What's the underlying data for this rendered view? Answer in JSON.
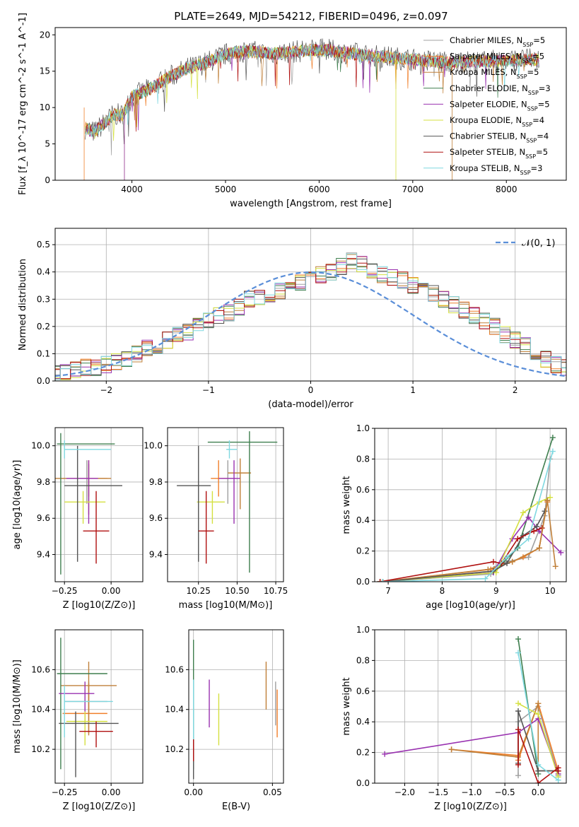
{
  "page_title": "PLATE=2649, MJD=54212, FIBERID=0496, z=0.097",
  "series_styles": [
    {
      "name": "Chabrier MILES, N<sub>SSP</sub>=5",
      "color": "#a0a0a0"
    },
    {
      "name": "Salpeter MILES, N<sub>SSP</sub>=5",
      "color": "#f07f2a"
    },
    {
      "name": "Kroupa MILES, N<sub>SSP</sub>=5",
      "color": "#c0803a"
    },
    {
      "name": "Chabrier ELODIE, N<sub>SSP</sub>=3",
      "color": "#3f7f4f"
    },
    {
      "name": "Salpeter ELODIE, N<sub>SSP</sub>=5",
      "color": "#9932b0"
    },
    {
      "name": "Kroupa ELODIE, N<sub>SSP</sub>=4",
      "color": "#d4e040"
    },
    {
      "name": "Chabrier STELIB, N<sub>SSP</sub>=4",
      "color": "#555555"
    },
    {
      "name": "Salpeter STELIB, N<sub>SSP</sub>=5",
      "color": "#b01010"
    },
    {
      "name": "Kroupa STELIB, N<sub>SSP</sub>=3",
      "color": "#7fd8e0"
    }
  ],
  "chart_data": [
    {
      "id": "spectrum",
      "type": "line",
      "title": "PLATE=2649, MJD=54212, FIBERID=0496, z=0.097",
      "xlabel": "wavelength [Angstrom, rest frame]",
      "ylabel": "Flux [f_λ 10^-17 erg cm^-2 s^-1 A^-1]",
      "xlim": [
        3180,
        8640
      ],
      "ylim": [
        0,
        21
      ],
      "xticks": [
        4000,
        5000,
        6000,
        7000,
        8000
      ],
      "yticks": [
        0,
        5,
        10,
        15,
        20
      ],
      "legend": "top-right",
      "series": [
        {
          "name": "Chabrier MILES, N<sub>SSP</sub>=5"
        },
        {
          "name": "Salpeter MILES, N<sub>SSP</sub>=5"
        },
        {
          "name": "Kroupa MILES, N<sub>SSP</sub>=5"
        },
        {
          "name": "Chabrier ELODIE, N<sub>SSP</sub>=3"
        },
        {
          "name": "Salpeter ELODIE, N<sub>SSP</sub>=5"
        },
        {
          "name": "Kroupa ELODIE, N<sub>SSP</sub>=4"
        },
        {
          "name": "Chabrier STELIB, N<sub>SSP</sub>=4"
        },
        {
          "name": "Salpeter STELIB, N<sub>SSP</sub>=5"
        },
        {
          "name": "Kroupa STELIB, N<sub>SSP</sub>=3"
        }
      ],
      "data_envelope": {
        "x": [
          3500,
          3600,
          3700,
          3800,
          3900,
          4000,
          4200,
          4400,
          4600,
          4800,
          5000,
          5200,
          5500,
          6000,
          6500,
          7000,
          7400,
          8000,
          8350
        ],
        "y": [
          7.2,
          6.6,
          7.8,
          9.0,
          9.0,
          11.5,
          12.6,
          14.2,
          15.4,
          16.2,
          17.3,
          17.8,
          17.4,
          18.0,
          17.2,
          16.6,
          16.2,
          16.5,
          16.6
        ]
      },
      "grid": false
    },
    {
      "id": "residuals",
      "type": "histogram",
      "xlabel": "(data-model)/error",
      "ylabel": "Normed distribution",
      "xlim": [
        -2.5,
        2.5
      ],
      "ylim": [
        0,
        0.56
      ],
      "xticks": [
        -2,
        -1,
        0,
        1,
        2
      ],
      "yticks": [
        0.0,
        0.1,
        0.2,
        0.3,
        0.4,
        0.5
      ],
      "grid": true,
      "legend": "top-right",
      "reference_curve": {
        "name": "𝒩(0, 1)",
        "color": "#5a8ed8",
        "mean": 0,
        "sigma": 1
      },
      "bin_width": 0.1,
      "values": [
        0.03,
        0.03,
        0.04,
        0.05,
        0.05,
        0.06,
        0.07,
        0.08,
        0.1,
        0.12,
        0.13,
        0.15,
        0.17,
        0.18,
        0.2,
        0.22,
        0.24,
        0.25,
        0.27,
        0.3,
        0.31,
        0.32,
        0.33,
        0.35,
        0.36,
        0.37,
        0.39,
        0.4,
        0.42,
        0.44,
        0.43,
        0.4,
        0.39,
        0.38,
        0.37,
        0.35,
        0.34,
        0.32,
        0.3,
        0.28,
        0.26,
        0.24,
        0.22,
        0.2,
        0.17,
        0.15,
        0.13,
        0.1,
        0.08,
        0.06,
        0.05
      ]
    },
    {
      "id": "age-vs-Z",
      "type": "errorbar",
      "xlabel": "Z [log10(Z/Z⊙)]",
      "ylabel": "age [log10(age/yr)]",
      "xlim": [
        -0.3,
        0.17
      ],
      "ylim": [
        9.25,
        10.1
      ],
      "xticks": [
        -0.25,
        0.0
      ],
      "yticks": [
        9.4,
        9.6,
        9.8,
        10.0
      ],
      "grid": true,
      "points": [
        {
          "series": 0,
          "x": -0.13,
          "y": 9.82,
          "xerr": [
            0.14,
            0.1
          ],
          "yerr": [
            0.14,
            0.1
          ]
        },
        {
          "series": 1,
          "x": -0.12,
          "y": 9.82,
          "xerr": [
            0.12,
            0.1
          ],
          "yerr": [
            0.1,
            0.1
          ]
        },
        {
          "series": 2,
          "x": -0.12,
          "y": 9.82,
          "xerr": [
            0.18,
            0.12
          ],
          "yerr": [
            0.2,
            0.08
          ]
        },
        {
          "series": 3,
          "x": -0.27,
          "y": 10.01,
          "xerr": [
            0.02,
            0.29
          ],
          "yerr": [
            0.72,
            0.06
          ]
        },
        {
          "series": 4,
          "x": -0.12,
          "y": 9.82,
          "xerr": [
            0.12,
            0.05
          ],
          "yerr": [
            0.25,
            0.1
          ]
        },
        {
          "series": 5,
          "x": -0.15,
          "y": 9.69,
          "xerr": [
            0.1,
            0.12
          ],
          "yerr": [
            0.12,
            0.06
          ]
        },
        {
          "series": 6,
          "x": -0.18,
          "y": 9.78,
          "xerr": [
            0.07,
            0.24
          ],
          "yerr": [
            0.42,
            0.22
          ]
        },
        {
          "series": 7,
          "x": -0.08,
          "y": 9.53,
          "xerr": [
            0.07,
            0.07
          ],
          "yerr": [
            0.18,
            0.22
          ]
        },
        {
          "series": 8,
          "x": -0.25,
          "y": 9.98,
          "xerr": [
            0.0,
            0.25
          ],
          "yerr": [
            0.05,
            0.05
          ]
        }
      ]
    },
    {
      "id": "age-vs-mass",
      "type": "errorbar",
      "xlabel": "mass [log10(M/M⊙)]",
      "ylabel": "",
      "xlim": [
        10.05,
        10.8
      ],
      "ylim": [
        9.25,
        10.1
      ],
      "xticks": [
        10.25,
        10.5,
        10.75
      ],
      "yticks": [
        9.4,
        9.6,
        9.8,
        10.0
      ],
      "grid": true,
      "points": [
        {
          "series": 0,
          "x": 10.44,
          "y": 9.82,
          "xerr": [
            0.04,
            0.05
          ],
          "yerr": [
            0.14,
            0.1
          ]
        },
        {
          "series": 1,
          "x": 10.38,
          "y": 9.82,
          "xerr": [
            0.05,
            0.06
          ],
          "yerr": [
            0.1,
            0.1
          ]
        },
        {
          "series": 2,
          "x": 10.52,
          "y": 9.85,
          "xerr": [
            0.08,
            0.07
          ],
          "yerr": [
            0.2,
            0.08
          ]
        },
        {
          "series": 3,
          "x": 10.58,
          "y": 10.02,
          "xerr": [
            0.27,
            0.18
          ],
          "yerr": [
            0.72,
            0.06
          ]
        },
        {
          "series": 4,
          "x": 10.48,
          "y": 9.82,
          "xerr": [
            0.1,
            0.04
          ],
          "yerr": [
            0.25,
            0.1
          ]
        },
        {
          "series": 5,
          "x": 10.34,
          "y": 9.69,
          "xerr": [
            0.1,
            0.08
          ],
          "yerr": [
            0.12,
            0.06
          ]
        },
        {
          "series": 6,
          "x": 10.25,
          "y": 9.78,
          "xerr": [
            0.14,
            0.08
          ],
          "yerr": [
            0.42,
            0.22
          ]
        },
        {
          "series": 7,
          "x": 10.3,
          "y": 9.53,
          "xerr": [
            0.05,
            0.05
          ],
          "yerr": [
            0.18,
            0.22
          ]
        },
        {
          "series": 8,
          "x": 10.45,
          "y": 9.98,
          "xerr": [
            0.02,
            0.05
          ],
          "yerr": [
            0.05,
            0.05
          ]
        }
      ]
    },
    {
      "id": "mass-weight-vs-age",
      "type": "line",
      "xlabel": "age [log10(age/yr)]",
      "ylabel": "mass weight",
      "xlim": [
        6.75,
        10.3
      ],
      "ylim": [
        0,
        1
      ],
      "xticks": [
        7,
        8,
        9,
        10
      ],
      "yticks": [
        0.0,
        0.2,
        0.4,
        0.6,
        0.8,
        1.0
      ],
      "grid": true,
      "series": [
        {
          "series": 0,
          "x": [
            6.85,
            8.9,
            9.0,
            9.2,
            9.6,
            9.9,
            10.0
          ],
          "y": [
            0.0,
            0.05,
            0.1,
            0.13,
            0.16,
            0.43,
            0.8
          ]
        },
        {
          "series": 1,
          "x": [
            6.85,
            8.9,
            9.3,
            9.5,
            9.8,
            9.95
          ],
          "y": [
            0.0,
            0.08,
            0.13,
            0.16,
            0.22,
            0.52
          ]
        },
        {
          "series": 2,
          "x": [
            6.9,
            8.85,
            9.3,
            9.8,
            9.95
          ],
          "y": [
            0.0,
            0.08,
            0.13,
            0.22,
            0.53
          ]
        },
        {
          "series": 3,
          "x": [
            6.9,
            8.95,
            9.4,
            10.05
          ],
          "y": [
            0.0,
            0.06,
            0.22,
            0.94
          ]
        },
        {
          "series": 4,
          "x": [
            6.85,
            8.95,
            9.3,
            9.6,
            9.8,
            10.2
          ],
          "y": [
            0.0,
            0.06,
            0.28,
            0.42,
            0.33,
            0.19
          ]
        },
        {
          "series": 5,
          "x": [
            6.85,
            9.0,
            9.5,
            9.8,
            10.0
          ],
          "y": [
            0.0,
            0.06,
            0.45,
            0.52,
            0.55
          ]
        },
        {
          "series": 6,
          "x": [
            6.9,
            8.95,
            9.2,
            9.5,
            9.75,
            9.9
          ],
          "y": [
            0.0,
            0.07,
            0.12,
            0.3,
            0.36,
            0.46
          ]
        },
        {
          "series": 7,
          "x": [
            6.85,
            8.95,
            9.1,
            9.4,
            9.7,
            9.85
          ],
          "y": [
            0.0,
            0.13,
            0.12,
            0.28,
            0.33,
            0.35
          ]
        },
        {
          "series": 8,
          "x": [
            6.9,
            8.8,
            9.2,
            9.6,
            10.05
          ],
          "y": [
            0.0,
            0.02,
            0.16,
            0.28,
            0.85
          ]
        },
        {
          "series": 2,
          "x": [
            9.8,
            9.95,
            10.1
          ],
          "y": [
            0.22,
            0.53,
            0.1
          ]
        }
      ]
    },
    {
      "id": "mass-vs-Z",
      "type": "errorbar",
      "xlabel": "Z [log10(Z/Z⊙)]",
      "ylabel": "mass [log10(M/M⊙)]",
      "xlim": [
        -0.3,
        0.17
      ],
      "ylim": [
        10.03,
        10.8
      ],
      "xticks": [
        -0.25,
        0.0
      ],
      "yticks": [
        10.2,
        10.4,
        10.6
      ],
      "grid": true,
      "points": [
        {
          "series": 0,
          "x": -0.12,
          "y": 10.44,
          "xerr": [
            0.13,
            0.1
          ],
          "yerr": [
            0.06,
            0.1
          ]
        },
        {
          "series": 1,
          "x": -0.12,
          "y": 10.38,
          "xerr": [
            0.14,
            0.1
          ],
          "yerr": [
            0.1,
            0.15
          ]
        },
        {
          "series": 2,
          "x": -0.12,
          "y": 10.52,
          "xerr": [
            0.15,
            0.15
          ],
          "yerr": [
            0.25,
            0.12
          ]
        },
        {
          "series": 3,
          "x": -0.27,
          "y": 10.58,
          "xerr": [
            0.02,
            0.25
          ],
          "yerr": [
            0.48,
            0.18
          ]
        },
        {
          "series": 4,
          "x": -0.14,
          "y": 10.48,
          "xerr": [
            0.14,
            0.05
          ],
          "yerr": [
            0.15,
            0.06
          ]
        },
        {
          "series": 5,
          "x": -0.14,
          "y": 10.34,
          "xerr": [
            0.1,
            0.12
          ],
          "yerr": [
            0.12,
            0.05
          ]
        },
        {
          "series": 6,
          "x": -0.19,
          "y": 10.33,
          "xerr": [
            0.09,
            0.23
          ],
          "yerr": [
            0.27,
            0.06
          ]
        },
        {
          "series": 7,
          "x": -0.08,
          "y": 10.29,
          "xerr": [
            0.09,
            0.09
          ],
          "yerr": [
            0.08,
            0.05
          ]
        },
        {
          "series": 8,
          "x": -0.25,
          "y": 10.44,
          "xerr": [
            0.0,
            0.26
          ],
          "yerr": [
            0.18,
            0.08
          ]
        }
      ]
    },
    {
      "id": "mass-vs-EBV",
      "type": "errorbar",
      "xlabel": "E(B-V)",
      "ylabel": "",
      "xlim": [
        -0.003,
        0.057
      ],
      "ylim": [
        10.03,
        10.8
      ],
      "xticks": [
        0.0,
        0.05
      ],
      "yticks": [
        10.2,
        10.4,
        10.6
      ],
      "grid": true,
      "points": [
        {
          "series": 0,
          "x": 0.052,
          "y": 10.44,
          "yerr": [
            0.12,
            0.1
          ]
        },
        {
          "series": 1,
          "x": 0.053,
          "y": 10.38,
          "yerr": [
            0.12,
            0.12
          ]
        },
        {
          "series": 2,
          "x": 0.046,
          "y": 10.52,
          "yerr": [
            0.12,
            0.12
          ]
        },
        {
          "series": 3,
          "x": 0.0,
          "y": 10.45,
          "yerr": [
            0.35,
            0.3
          ]
        },
        {
          "series": 4,
          "x": 0.01,
          "y": 10.43,
          "yerr": [
            0.12,
            0.12
          ]
        },
        {
          "series": 5,
          "x": 0.016,
          "y": 10.35,
          "yerr": [
            0.13,
            0.13
          ]
        },
        {
          "series": 6,
          "x": 0.0,
          "y": 10.15,
          "yerr": [
            0.1,
            0.1
          ]
        },
        {
          "series": 7,
          "x": 0.0,
          "y": 10.2,
          "yerr": [
            0.06,
            0.05
          ]
        },
        {
          "series": 8,
          "x": 0.0,
          "y": 10.4,
          "yerr": [
            0.15,
            0.15
          ]
        }
      ]
    },
    {
      "id": "mass-weight-vs-Z",
      "type": "line",
      "xlabel": "Z [log10(Z/Z⊙)]",
      "ylabel": "mass weight",
      "xlim": [
        -2.45,
        0.42
      ],
      "ylim": [
        0,
        1
      ],
      "xticks": [
        -2.0,
        -1.5,
        -1.0,
        -0.5,
        0.0
      ],
      "yticks": [
        0.0,
        0.2,
        0.4,
        0.6,
        0.8,
        1.0
      ],
      "grid": true,
      "series": [
        {
          "series": 0,
          "x": [
            -0.3,
            -0.3,
            0.0,
            0.3
          ],
          "y": [
            0.05,
            0.4,
            0.5,
            0.05
          ]
        },
        {
          "series": 1,
          "x": [
            -1.3,
            -0.3,
            -0.3,
            0.0,
            0.3
          ],
          "y": [
            0.22,
            0.18,
            0.15,
            0.52,
            0.08
          ]
        },
        {
          "series": 2,
          "x": [
            -1.3,
            -0.3,
            0.0,
            0.0,
            0.3
          ],
          "y": [
            0.22,
            0.17,
            0.52,
            0.08,
            0.08
          ]
        },
        {
          "series": 3,
          "x": [
            -0.3,
            0.0
          ],
          "y": [
            0.94,
            0.06
          ]
        },
        {
          "series": 4,
          "x": [
            -2.3,
            -0.3,
            0.0,
            0.3
          ],
          "y": [
            0.19,
            0.33,
            0.42,
            0.06
          ]
        },
        {
          "series": 5,
          "x": [
            -0.3,
            0.0,
            0.3
          ],
          "y": [
            0.52,
            0.45,
            0.04
          ]
        },
        {
          "series": 6,
          "x": [
            -0.3,
            -0.3,
            0.0,
            0.3
          ],
          "y": [
            0.13,
            0.47,
            0.08,
            0.08
          ]
        },
        {
          "series": 7,
          "x": [
            -0.3,
            -0.3,
            0.0,
            0.3,
            0.3
          ],
          "y": [
            0.12,
            0.35,
            0.0,
            0.1,
            0.08
          ]
        },
        {
          "series": 8,
          "x": [
            -0.3,
            0.0,
            0.3
          ],
          "y": [
            0.85,
            0.12,
            0.02
          ]
        }
      ]
    }
  ]
}
